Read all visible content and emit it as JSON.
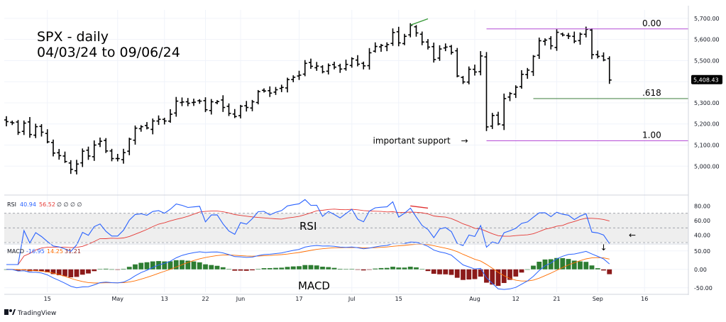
{
  "chart_data": {
    "type": "ohlc",
    "title_lines": [
      "SPX - daily",
      "04/03/24 to 09/06/24"
    ],
    "x_tick_labels": [
      {
        "label": "15",
        "bar": 7
      },
      {
        "label": "May",
        "bar": 19
      },
      {
        "label": "13",
        "bar": 27
      },
      {
        "label": "22",
        "bar": 34
      },
      {
        "label": "Jun",
        "bar": 40
      },
      {
        "label": "17",
        "bar": 50
      },
      {
        "label": "Jul",
        "bar": 59
      },
      {
        "label": "15",
        "bar": 67
      },
      {
        "label": "Aug",
        "bar": 80
      },
      {
        "label": "12",
        "bar": 87
      },
      {
        "label": "21",
        "bar": 94
      },
      {
        "label": "Sep",
        "bar": 101
      },
      {
        "label": "16",
        "bar": 109
      }
    ],
    "price_panel": {
      "y_range": [
        4880,
        5740
      ],
      "y_ticks": [
        {
          "value": 5700,
          "label": "5,700.00"
        },
        {
          "value": 5600,
          "label": "5,600.00"
        },
        {
          "value": 5500,
          "label": "5,500.00"
        },
        {
          "value": 5400,
          "label": "5,400.00"
        },
        {
          "value": 5300,
          "label": "5,300.00"
        },
        {
          "value": 5200,
          "label": "5,200.00"
        },
        {
          "value": 5100,
          "label": "5,100.00"
        },
        {
          "value": 5000,
          "label": "5,000.00"
        }
      ],
      "last_price": {
        "value": 5408.43,
        "label": "5,408.43"
      },
      "close": [
        5211,
        5205,
        5160,
        5204,
        5150,
        5187,
        5161,
        5115,
        5062,
        5050,
        5022,
        4985,
        5010,
        5071,
        5048,
        5100,
        5118,
        5072,
        5036,
        5036,
        5064,
        5128,
        5180,
        5187,
        5181,
        5214,
        5222,
        5214,
        5246,
        5308,
        5304,
        5298,
        5303,
        5308,
        5267,
        5305,
        5306,
        5278,
        5250,
        5235,
        5284,
        5278,
        5305,
        5353,
        5356,
        5346,
        5362,
        5373,
        5410,
        5421,
        5431,
        5487,
        5473,
        5474,
        5447,
        5477,
        5469,
        5460,
        5482,
        5509,
        5483,
        5475,
        5537,
        5567,
        5572,
        5576,
        5633,
        5584,
        5615,
        5667,
        5631,
        5588,
        5564,
        5505,
        5555,
        5564,
        5539,
        5427,
        5399,
        5459,
        5446,
        5522,
        5186,
        5240,
        5200,
        5320,
        5344,
        5374,
        5435,
        5455,
        5520,
        5594,
        5597,
        5570,
        5634,
        5621,
        5616,
        5592,
        5625,
        5648,
        5528,
        5520,
        5503,
        5408
      ],
      "hlines": [
        {
          "label": "0.00",
          "value": 5650,
          "color": "#b44cd6",
          "from_bar": 82
        },
        {
          "label": ".618",
          "value": 5320,
          "color": "#3b7d3b",
          "from_bar": 90
        },
        {
          "label": "1.00",
          "value": 5120,
          "color": "#b44cd6",
          "from_bar": 82
        }
      ],
      "annotation": {
        "text": "important support",
        "arrow": "→",
        "bar": 82,
        "value": 5120
      },
      "divergence_line": {
        "bar_from": 69,
        "bar_to": 72,
        "value_from": 5668,
        "value_to": 5698,
        "color": "#3b9b3b"
      }
    },
    "rsi_panel": {
      "legend": {
        "name": "RSI",
        "value1": "40.94",
        "value2": "56.52",
        "extra": "∅ ∅ ∅ ∅"
      },
      "label": "RSI",
      "y_range": [
        30,
        90
      ],
      "y_ticks": [
        {
          "value": 80,
          "label": "80.00"
        },
        {
          "value": 60,
          "label": "60.00"
        },
        {
          "value": 40,
          "label": "40.00"
        }
      ],
      "band": [
        30,
        70
      ],
      "midline": 50,
      "arrow": "←",
      "divergence_line": {
        "bar_from": 69,
        "bar_to": 72,
        "value_from": 80,
        "value_to": 77,
        "color": "#e03030"
      }
    },
    "macd_panel": {
      "legend": {
        "name": "MACD",
        "value1": "-16.95",
        "value2": "14.25",
        "value3": "31.21"
      },
      "label": "MACD",
      "y_range": [
        -62,
        65
      ],
      "y_ticks": [
        {
          "value": 50,
          "label": "50.00"
        },
        {
          "value": 0,
          "label": "0.00"
        },
        {
          "value": -50,
          "label": "-50.00"
        }
      ],
      "arrow": "↓",
      "arrow_bar": 102
    },
    "colors": {
      "price": "#000000",
      "rsi": "#2962ff",
      "rsi_ma": "#e53935",
      "macd": "#2962ff",
      "signal": "#ff6d00",
      "hist_pos": "#2e7d32",
      "hist_neg": "#8b1a1a",
      "grid": "#f0f3fa",
      "band": "#eeeeee"
    }
  },
  "branding": {
    "logo_text": "TradingView"
  }
}
